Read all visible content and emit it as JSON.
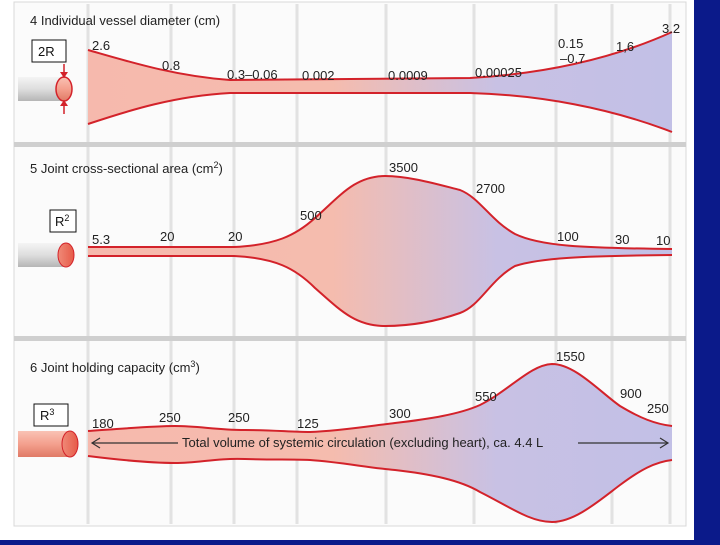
{
  "colors": {
    "frame": "#0b1a8a",
    "grid": "#e2e2e2",
    "separator": "#c8c8c8",
    "outline": "#d3222a",
    "fill_start": "#f6b9ad",
    "fill_end": "#c2c0e6"
  },
  "panel4": {
    "title": "4 Individual vessel diameter (cm)",
    "r_label": "2R",
    "values": [
      "2.6",
      "0.8",
      "0.3–0.06",
      "0.002",
      "0.0009",
      "0.00025",
      "0.15",
      "–0.7",
      "1,6",
      "3.2"
    ]
  },
  "panel5": {
    "title_main": "5 Joint cross-sectional area (cm",
    "title_sup": "2",
    "title_end": ")",
    "r_label_main": "R",
    "r_label_sup": "2",
    "values": [
      "5.3",
      "20",
      "20",
      "500",
      "3500",
      "2700",
      "100",
      "30",
      "10"
    ]
  },
  "panel6": {
    "title_main": "6 Joint holding capacity (cm",
    "title_sup": "3",
    "title_end": ")",
    "r_label_main": "R",
    "r_label_sup": "3",
    "values": [
      "180",
      "250",
      "250",
      "125",
      "300",
      "550",
      "1550",
      "900",
      "250"
    ],
    "total_label": "Total volume of systemic circulation (excluding heart), ca. 4.4 L"
  }
}
